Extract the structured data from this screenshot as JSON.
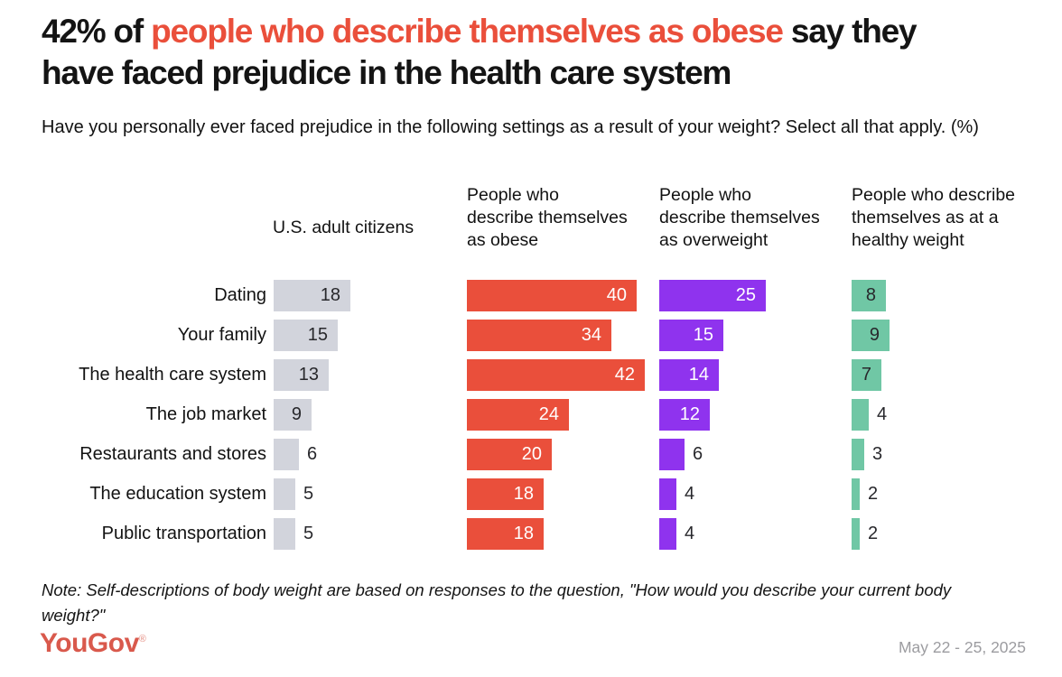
{
  "title": {
    "prefix": "42% of ",
    "highlight": "people who describe themselves as obese",
    "suffix": " say they have faced prejudice in the health care system"
  },
  "subtitle": "Have you personally ever faced prejudice in the following settings as a result of your weight? Select all that apply. (%)",
  "note": "Note: Self-descriptions of body weight are based on responses to the question, \"How would you describe your current body weight?\"",
  "footer": {
    "logo_text": "YouGov",
    "registered_mark": "®",
    "date_range": "May 22 - 25, 2025"
  },
  "colors": {
    "red": "#EA4F3B",
    "purple": "#8F33EE",
    "green": "#70C7A5",
    "gray": "#D2D4DC",
    "text_dark": "#28282C",
    "white": "#FFFFFF",
    "logo_red": "#D9594C",
    "date_gray": "#9C9CA0"
  },
  "chart_data": {
    "type": "bar",
    "orientation": "horizontal",
    "value_unit": "percent",
    "xmax": 45,
    "grid": false,
    "legend_position": "column-headers-top",
    "inside_label_min_value": 7,
    "categories": [
      "Dating",
      "Your family",
      "The health care system",
      "The job market",
      "Restaurants and stores",
      "The education system",
      "Public transportation"
    ],
    "series": [
      {
        "name": "U.S. adult citizens",
        "color_key": "gray",
        "label_color": "dark",
        "values": [
          18,
          15,
          13,
          9,
          6,
          5,
          5
        ]
      },
      {
        "name": "People who describe themselves as obese",
        "color_key": "red",
        "label_color": "white",
        "values": [
          40,
          34,
          42,
          24,
          20,
          18,
          18
        ]
      },
      {
        "name": "People who describe themselves as overweight",
        "color_key": "purple",
        "label_color": "white",
        "values": [
          25,
          15,
          14,
          12,
          6,
          4,
          4
        ]
      },
      {
        "name": "People who describe themselves as at a healthy weight",
        "color_key": "green",
        "label_color": "dark",
        "values": [
          8,
          9,
          7,
          4,
          3,
          2,
          2
        ]
      }
    ]
  }
}
